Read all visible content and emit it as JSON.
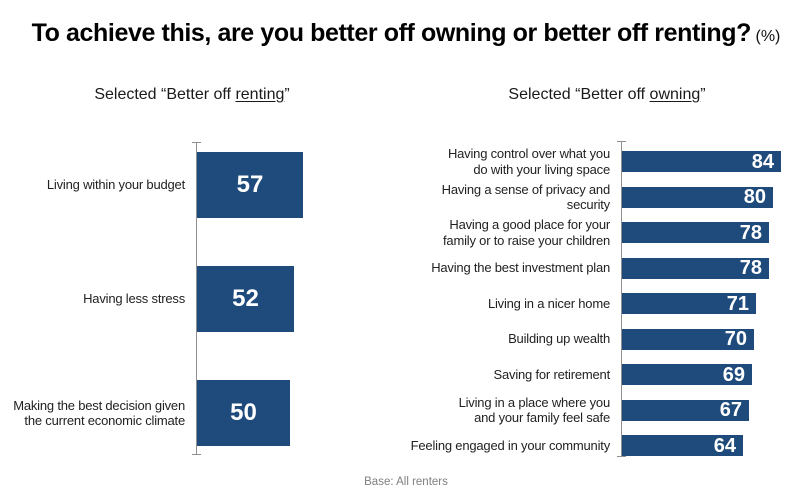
{
  "title": {
    "main": "To achieve this, are you better off owning or better off renting?",
    "suffix": "(%)"
  },
  "footnote": "Base: All renters",
  "colors": {
    "bar": "#1f4b7c",
    "axis": "#8f8f8f",
    "title_text": "#000000",
    "label_text": "#222222",
    "value_text": "#ffffff",
    "footnote_text": "#7f7f7f"
  },
  "chart_data": [
    {
      "type": "bar",
      "orientation": "horizontal",
      "subtitle": {
        "prefix": "Selected “Better off ",
        "underlined": "renting",
        "suffix": "”"
      },
      "categories": [
        "Living within your budget",
        "Having less stress",
        "Making the best decision given\nthe current economic climate"
      ],
      "values": [
        57,
        52,
        50
      ],
      "value_labels_inside_bars": true,
      "grid": false,
      "legend": false
    },
    {
      "type": "bar",
      "orientation": "horizontal",
      "subtitle": {
        "prefix": "Selected “Better off ",
        "underlined": "owning",
        "suffix": "”"
      },
      "categories": [
        "Having control over what you\ndo with your living space",
        "Having a sense of privacy and security",
        "Having a good place for your\nfamily or to raise your children",
        "Having the best investment plan",
        "Living in a nicer home",
        "Building up wealth",
        "Saving for retirement",
        "Living in a place where you\nand your family feel safe",
        "Feeling engaged in your community"
      ],
      "values": [
        84,
        80,
        78,
        78,
        71,
        70,
        69,
        67,
        64
      ],
      "value_labels_inside_bars": true,
      "grid": false,
      "legend": false
    }
  ]
}
